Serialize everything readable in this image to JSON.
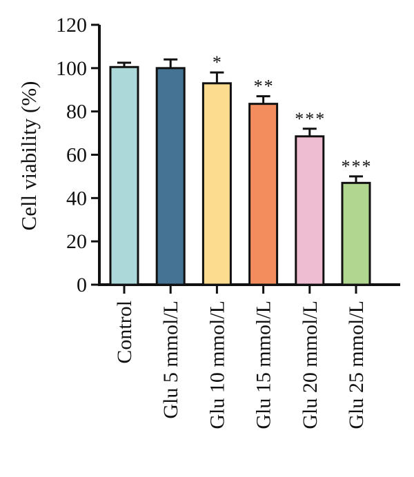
{
  "chart_data": {
    "type": "bar",
    "title": "",
    "xlabel": "",
    "ylabel": "Cell viability (%)",
    "ylim": [
      0,
      120
    ],
    "yticks": [
      0,
      20,
      40,
      60,
      80,
      100,
      120
    ],
    "categories": [
      "Control",
      "Glu 5 mmol/L",
      "Glu 10 mmol/L",
      "Glu 15 mmol/L",
      "Glu 20 mmol/L",
      "Glu 25 mmol/L"
    ],
    "values": [
      100.5,
      100,
      93,
      83.5,
      68.5,
      47
    ],
    "errors": [
      2,
      4,
      5,
      3.5,
      3.5,
      3
    ],
    "significance": [
      "",
      "",
      "*",
      "**",
      "***",
      "***"
    ],
    "colors": [
      "#acd8da",
      "#447394",
      "#fcdd90",
      "#f48d5e",
      "#efbdd1",
      "#b0d690"
    ],
    "grid": false,
    "legend": "none"
  }
}
